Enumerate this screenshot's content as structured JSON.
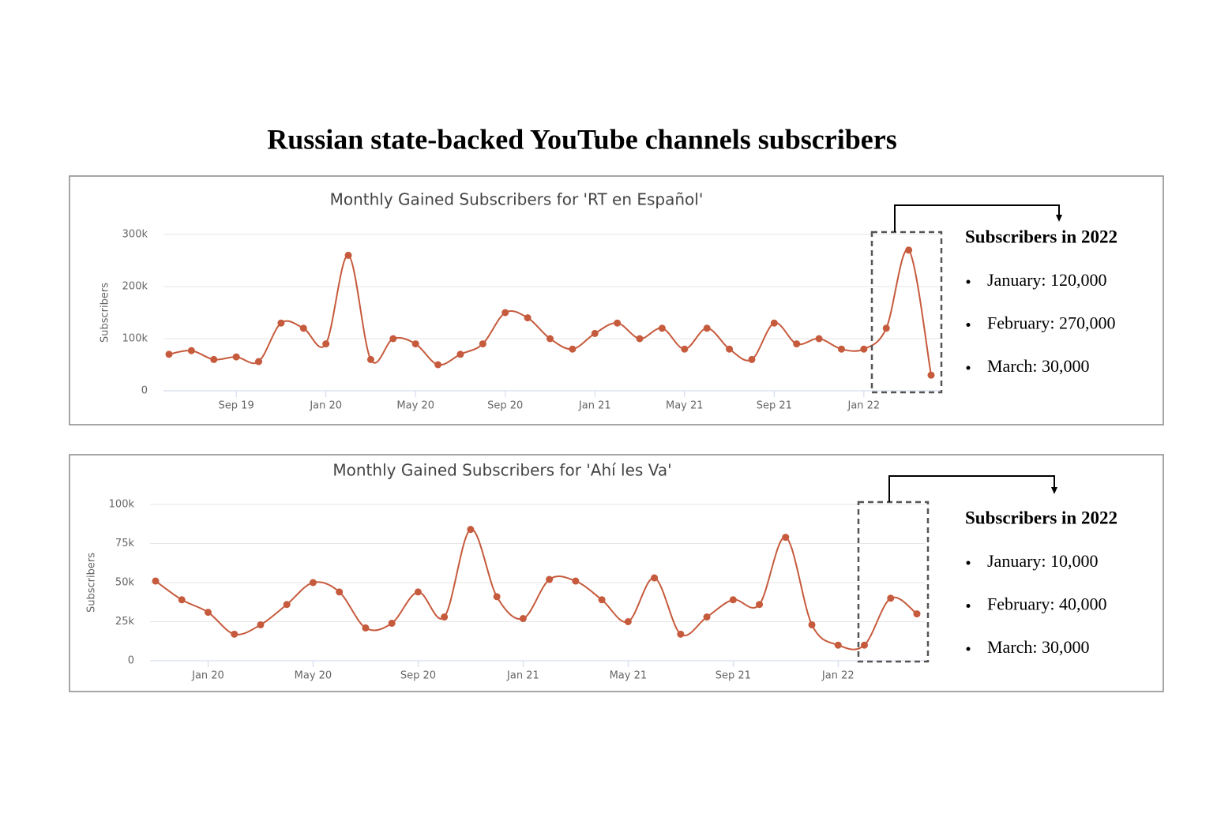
{
  "title": "Russian state-backed YouTube channels subscribers",
  "chart_data": [
    {
      "type": "line",
      "title": "Monthly Gained Subscribers for 'RT en Español'",
      "y_label": "Subscribers",
      "color": "#c65a3c",
      "grid": true,
      "categories": [
        null,
        null,
        null,
        "Sep 19",
        null,
        null,
        null,
        "Jan 20",
        null,
        null,
        null,
        "May 20",
        null,
        null,
        null,
        "Sep 20",
        null,
        null,
        null,
        "Jan 21",
        null,
        null,
        null,
        "May 21",
        null,
        null,
        null,
        "Sep 21",
        null,
        null,
        null,
        "Jan 22",
        null,
        null,
        null
      ],
      "values": [
        70000,
        77000,
        60000,
        65000,
        56000,
        130000,
        120000,
        90000,
        260000,
        60000,
        100000,
        90000,
        50000,
        70000,
        90000,
        150000,
        140000,
        100000,
        80000,
        110000,
        130000,
        100000,
        120000,
        80000,
        120000,
        80000,
        60000,
        130000,
        90000,
        100000,
        80000,
        80000,
        120000,
        270000,
        30000
      ],
      "ylim": [
        0,
        300000
      ],
      "yticks": [
        0,
        {
          "value": 100000,
          "label": "100k"
        },
        {
          "value": 200000,
          "label": "200k"
        },
        {
          "value": 300000,
          "label": "300k"
        }
      ],
      "annotation": {
        "title": "Subscribers in 2022",
        "items": [
          "January: 120,000",
          "February: 270,000",
          "March: 30,000"
        ]
      }
    },
    {
      "type": "line",
      "title": "Monthly Gained Subscribers for 'Ahí les Va'",
      "y_label": "Subscribers",
      "color": "#c65a3c",
      "grid": true,
      "categories": [
        null,
        null,
        "Jan 20",
        null,
        null,
        null,
        "May 20",
        null,
        null,
        null,
        "Sep 20",
        null,
        null,
        null,
        "Jan 21",
        null,
        null,
        null,
        "May 21",
        null,
        null,
        null,
        "Sep 21",
        null,
        null,
        null,
        "Jan 22",
        null,
        null,
        null
      ],
      "values": [
        51000,
        39000,
        31000,
        17000,
        23000,
        36000,
        50000,
        44000,
        21000,
        24000,
        44000,
        28000,
        84000,
        41000,
        27000,
        52000,
        51000,
        39000,
        25000,
        53000,
        17000,
        28000,
        39000,
        36000,
        79000,
        23000,
        10000,
        10000,
        40000,
        30000
      ],
      "ylim": [
        0,
        100000
      ],
      "yticks": [
        0,
        {
          "value": 25000,
          "label": "25k"
        },
        {
          "value": 50000,
          "label": "50k"
        },
        {
          "value": 75000,
          "label": "75k"
        },
        {
          "value": 100000,
          "label": "100k"
        }
      ],
      "annotation": {
        "title": "Subscribers in 2022",
        "items": [
          "January: 10,000",
          "February: 40,000",
          "March: 30,000"
        ]
      }
    }
  ]
}
